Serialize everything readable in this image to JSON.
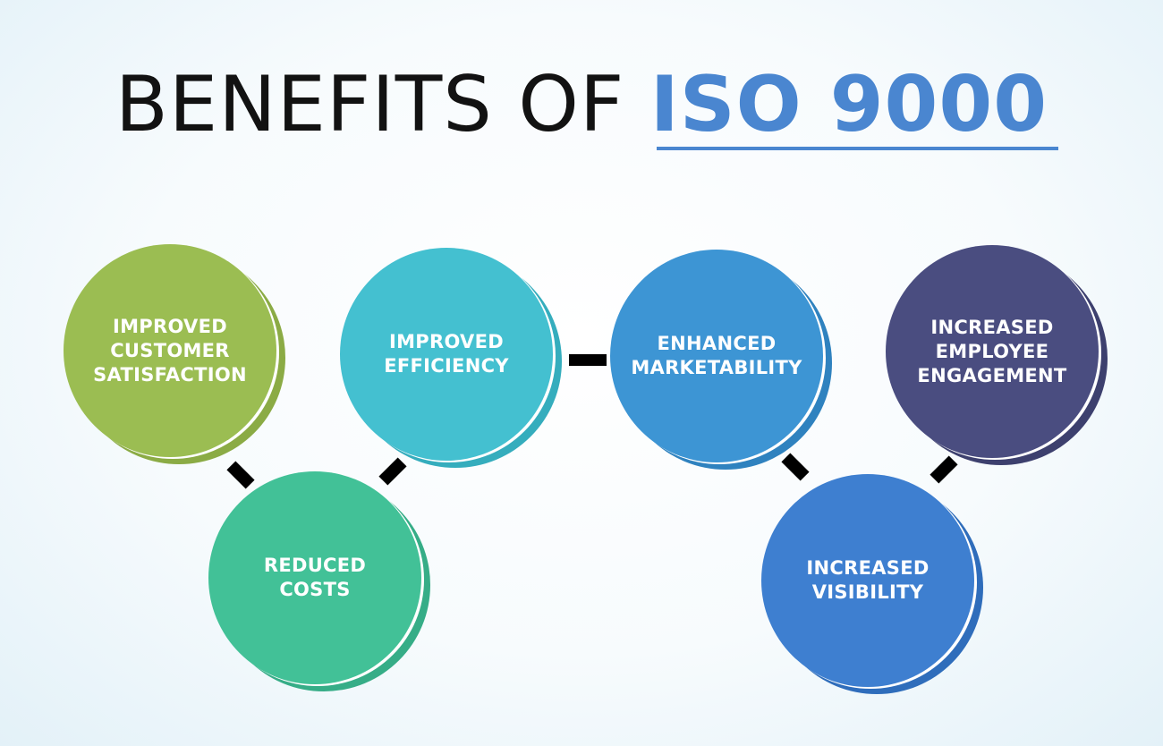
{
  "title": {
    "prefix": "BENEFITS OF ",
    "accent": "ISO 9000",
    "accent_color": "#4a86d0"
  },
  "nodes": [
    {
      "id": "improved-customer-satisfaction",
      "label": "IMPROVED\nCUSTOMER\nSATISFACTION",
      "color": "#9bbd52",
      "shadow": "#8bab45"
    },
    {
      "id": "reduced-costs",
      "label": "REDUCED\nCOSTS",
      "color": "#42c197",
      "shadow": "#36ad87"
    },
    {
      "id": "improved-efficiency",
      "label": "IMPROVED\nEFFICIENCY",
      "color": "#44c0d0",
      "shadow": "#35adbd"
    },
    {
      "id": "enhanced-marketability",
      "label": "ENHANCED\nMARKETABILITY",
      "color": "#3d95d4",
      "shadow": "#2f82bf"
    },
    {
      "id": "increased-visibility",
      "label": "INCREASED\nVISIBILITY",
      "color": "#3e7fd0",
      "shadow": "#2f6dbb"
    },
    {
      "id": "increased-employee-engagement",
      "label": "INCREASED\nEMPLOYEE\nENGAGEMENT",
      "color": "#4a4d80",
      "shadow": "#3d406e"
    }
  ],
  "connector_color": "#000000"
}
